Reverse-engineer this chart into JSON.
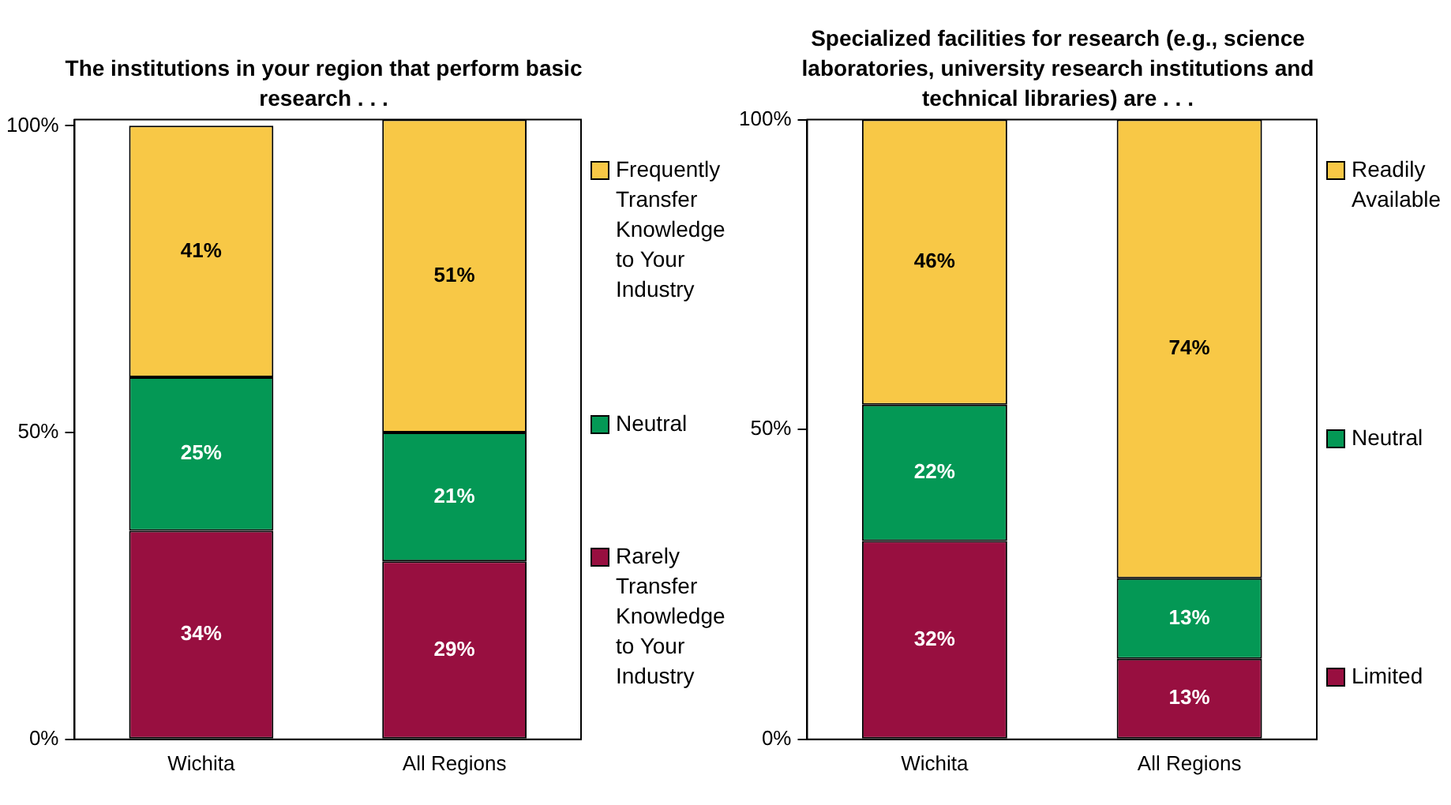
{
  "chart_data": [
    {
      "type": "bar",
      "title": "The institutions in your region that perform basic research . . .",
      "categories": [
        "Wichita",
        "All Regions"
      ],
      "stacked": true,
      "legend": "right",
      "ylim": [
        0,
        101
      ],
      "yticks": [
        {
          "value": 0,
          "label": "0%"
        },
        {
          "value": 50,
          "label": "50%"
        },
        {
          "value": 100,
          "label": "100%"
        }
      ],
      "series": [
        {
          "name": "Rarely Transfer Knowledge to Your Industry",
          "color": "#980f40",
          "values": [
            34,
            29
          ],
          "value_labels": [
            "34%",
            "29%"
          ]
        },
        {
          "name": "Neutral",
          "color": "#049855",
          "values": [
            25,
            21
          ],
          "value_labels": [
            "25%",
            "21%"
          ]
        },
        {
          "name": "Frequently Transfer Knowledge to Your Industry",
          "color": "#f8c846",
          "values": [
            41,
            51
          ],
          "value_labels": [
            "41%",
            "51%"
          ]
        }
      ]
    },
    {
      "type": "bar",
      "title": "Specialized facilities for research (e.g., science laboratories, university research institutions and technical libraries) are . . .",
      "categories": [
        "Wichita",
        "All Regions"
      ],
      "stacked": true,
      "legend": "right",
      "ylim": [
        0,
        100
      ],
      "yticks": [
        {
          "value": 0,
          "label": "0%"
        },
        {
          "value": 50,
          "label": "50%"
        },
        {
          "value": 100,
          "label": "100%"
        }
      ],
      "series": [
        {
          "name": "Limited",
          "color": "#980f40",
          "values": [
            32,
            13
          ],
          "value_labels": [
            "32%",
            "13%"
          ]
        },
        {
          "name": "Neutral",
          "color": "#049855",
          "values": [
            22,
            13
          ],
          "value_labels": [
            "22%",
            "13%"
          ]
        },
        {
          "name": "Readily Available",
          "color": "#f8c846",
          "values": [
            46,
            74
          ],
          "value_labels": [
            "46%",
            "74%"
          ]
        }
      ]
    }
  ]
}
